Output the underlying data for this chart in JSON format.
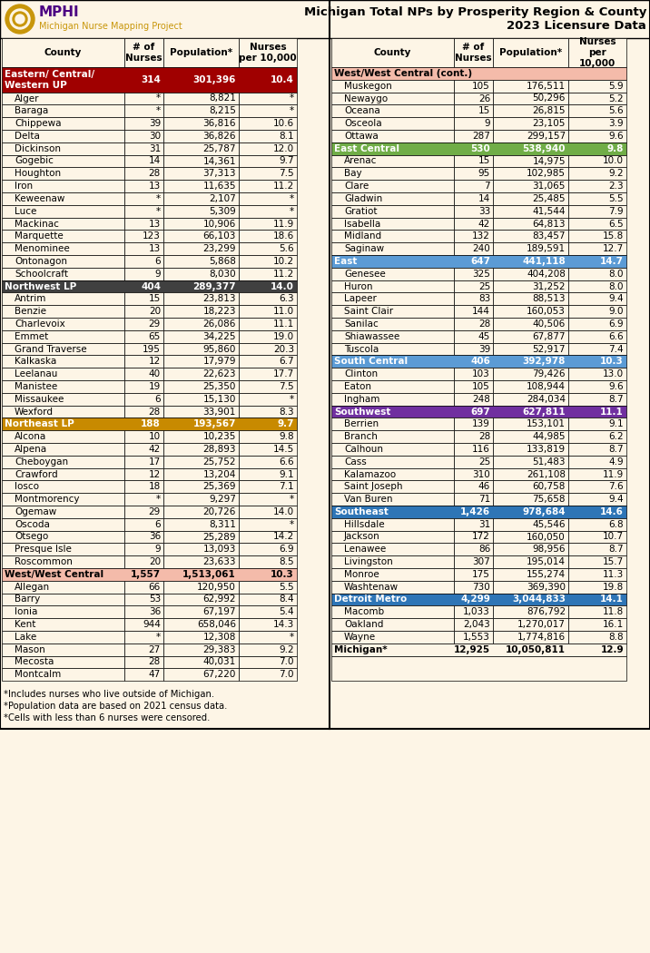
{
  "title_line1": "Michigan Total NPs by Prosperity Region & County",
  "title_line2": "2023 Licensure Data",
  "footnotes": [
    "*Includes nurses who live outside of Michigan.",
    "*Population data are based on 2021 census data.",
    "*Cells with less than 6 nurses were censored."
  ],
  "left_sections": [
    {
      "name": "Eastern/ Central/\nWestern UP",
      "nurses": "314",
      "population": "301,396",
      "per10k": "10.4",
      "color": "#A00000",
      "text_color": "#FFFFFF",
      "header_rows": 2,
      "counties": [
        [
          "Alger",
          "*",
          "8,821",
          "*"
        ],
        [
          "Baraga",
          "*",
          "8,215",
          "*"
        ],
        [
          "Chippewa",
          "39",
          "36,816",
          "10.6"
        ],
        [
          "Delta",
          "30",
          "36,826",
          "8.1"
        ],
        [
          "Dickinson",
          "31",
          "25,787",
          "12.0"
        ],
        [
          "Gogebic",
          "14",
          "14,361",
          "9.7"
        ],
        [
          "Houghton",
          "28",
          "37,313",
          "7.5"
        ],
        [
          "Iron",
          "13",
          "11,635",
          "11.2"
        ],
        [
          "Keweenaw",
          "*",
          "2,107",
          "*"
        ],
        [
          "Luce",
          "*",
          "5,309",
          "*"
        ],
        [
          "Mackinac",
          "13",
          "10,906",
          "11.9"
        ],
        [
          "Marquette",
          "123",
          "66,103",
          "18.6"
        ],
        [
          "Menominee",
          "13",
          "23,299",
          "5.6"
        ],
        [
          "Ontonagon",
          "6",
          "5,868",
          "10.2"
        ],
        [
          "Schoolcraft",
          "9",
          "8,030",
          "11.2"
        ]
      ]
    },
    {
      "name": "Northwest LP",
      "nurses": "404",
      "population": "289,377",
      "per10k": "14.0",
      "color": "#404040",
      "text_color": "#FFFFFF",
      "header_rows": 1,
      "counties": [
        [
          "Antrim",
          "15",
          "23,813",
          "6.3"
        ],
        [
          "Benzie",
          "20",
          "18,223",
          "11.0"
        ],
        [
          "Charlevoix",
          "29",
          "26,086",
          "11.1"
        ],
        [
          "Emmet",
          "65",
          "34,225",
          "19.0"
        ],
        [
          "Grand Traverse",
          "195",
          "95,860",
          "20.3"
        ],
        [
          "Kalkaska",
          "12",
          "17,979",
          "6.7"
        ],
        [
          "Leelanau",
          "40",
          "22,623",
          "17.7"
        ],
        [
          "Manistee",
          "19",
          "25,350",
          "7.5"
        ],
        [
          "Missaukee",
          "6",
          "15,130",
          "*"
        ],
        [
          "Wexford",
          "28",
          "33,901",
          "8.3"
        ]
      ]
    },
    {
      "name": "Northeast LP",
      "nurses": "188",
      "population": "193,567",
      "per10k": "9.7",
      "color": "#C88A00",
      "text_color": "#FFFFFF",
      "header_rows": 1,
      "counties": [
        [
          "Alcona",
          "10",
          "10,235",
          "9.8"
        ],
        [
          "Alpena",
          "42",
          "28,893",
          "14.5"
        ],
        [
          "Cheboygan",
          "17",
          "25,752",
          "6.6"
        ],
        [
          "Crawford",
          "12",
          "13,204",
          "9.1"
        ],
        [
          "Iosco",
          "18",
          "25,369",
          "7.1"
        ],
        [
          "Montmorency",
          "*",
          "9,297",
          "*"
        ],
        [
          "Ogemaw",
          "29",
          "20,726",
          "14.0"
        ],
        [
          "Oscoda",
          "6",
          "8,311",
          "*"
        ],
        [
          "Otsego",
          "36",
          "25,289",
          "14.2"
        ],
        [
          "Presque Isle",
          "9",
          "13,093",
          "6.9"
        ],
        [
          "Roscommon",
          "20",
          "23,633",
          "8.5"
        ]
      ]
    },
    {
      "name": "West/West Central",
      "nurses": "1,557",
      "population": "1,513,061",
      "per10k": "10.3",
      "color": "#F4BBAA",
      "text_color": "#000000",
      "header_rows": 1,
      "counties": [
        [
          "Allegan",
          "66",
          "120,950",
          "5.5"
        ],
        [
          "Barry",
          "53",
          "62,992",
          "8.4"
        ],
        [
          "Ionia",
          "36",
          "67,197",
          "5.4"
        ],
        [
          "Kent",
          "944",
          "658,046",
          "14.3"
        ],
        [
          "Lake",
          "*",
          "12,308",
          "*"
        ],
        [
          "Mason",
          "27",
          "29,383",
          "9.2"
        ],
        [
          "Mecosta",
          "28",
          "40,031",
          "7.0"
        ],
        [
          "Montcalm",
          "47",
          "67,220",
          "7.0"
        ]
      ]
    }
  ],
  "right_sections": [
    {
      "name": "West/West Central (cont.)",
      "nurses": "",
      "population": "",
      "per10k": "",
      "color": "#F4BBAA",
      "text_color": "#000000",
      "is_continuation": true,
      "header_rows": 1,
      "counties": [
        [
          "Muskegon",
          "105",
          "176,511",
          "5.9"
        ],
        [
          "Newaygo",
          "26",
          "50,296",
          "5.2"
        ],
        [
          "Oceana",
          "15",
          "26,815",
          "5.6"
        ],
        [
          "Osceola",
          "9",
          "23,105",
          "3.9"
        ],
        [
          "Ottawa",
          "287",
          "299,157",
          "9.6"
        ]
      ]
    },
    {
      "name": "East Central",
      "nurses": "530",
      "population": "538,940",
      "per10k": "9.8",
      "color": "#70AD47",
      "text_color": "#FFFFFF",
      "header_rows": 1,
      "counties": [
        [
          "Arenac",
          "15",
          "14,975",
          "10.0"
        ],
        [
          "Bay",
          "95",
          "102,985",
          "9.2"
        ],
        [
          "Clare",
          "7",
          "31,065",
          "2.3"
        ],
        [
          "Gladwin",
          "14",
          "25,485",
          "5.5"
        ],
        [
          "Gratiot",
          "33",
          "41,544",
          "7.9"
        ],
        [
          "Isabella",
          "42",
          "64,813",
          "6.5"
        ],
        [
          "Midland",
          "132",
          "83,457",
          "15.8"
        ],
        [
          "Saginaw",
          "240",
          "189,591",
          "12.7"
        ]
      ]
    },
    {
      "name": "East",
      "nurses": "647",
      "population": "441,118",
      "per10k": "14.7",
      "color": "#5B9BD5",
      "text_color": "#FFFFFF",
      "header_rows": 1,
      "counties": [
        [
          "Genesee",
          "325",
          "404,208",
          "8.0"
        ],
        [
          "Huron",
          "25",
          "31,252",
          "8.0"
        ],
        [
          "Lapeer",
          "83",
          "88,513",
          "9.4"
        ],
        [
          "Saint Clair",
          "144",
          "160,053",
          "9.0"
        ],
        [
          "Sanilac",
          "28",
          "40,506",
          "6.9"
        ],
        [
          "Shiawassee",
          "45",
          "67,877",
          "6.6"
        ],
        [
          "Tuscola",
          "39",
          "52,917",
          "7.4"
        ]
      ]
    },
    {
      "name": "South Central",
      "nurses": "406",
      "population": "392,978",
      "per10k": "10.3",
      "color": "#5B9BD5",
      "text_color": "#FFFFFF",
      "header_rows": 1,
      "counties": [
        [
          "Clinton",
          "103",
          "79,426",
          "13.0"
        ],
        [
          "Eaton",
          "105",
          "108,944",
          "9.6"
        ],
        [
          "Ingham",
          "248",
          "284,034",
          "8.7"
        ]
      ]
    },
    {
      "name": "Southwest",
      "nurses": "697",
      "population": "627,811",
      "per10k": "11.1",
      "color": "#7030A0",
      "text_color": "#FFFFFF",
      "header_rows": 1,
      "counties": [
        [
          "Berrien",
          "139",
          "153,101",
          "9.1"
        ],
        [
          "Branch",
          "28",
          "44,985",
          "6.2"
        ],
        [
          "Calhoun",
          "116",
          "133,819",
          "8.7"
        ],
        [
          "Cass",
          "25",
          "51,483",
          "4.9"
        ],
        [
          "Kalamazoo",
          "310",
          "261,108",
          "11.9"
        ],
        [
          "Saint Joseph",
          "46",
          "60,758",
          "7.6"
        ],
        [
          "Van Buren",
          "71",
          "75,658",
          "9.4"
        ]
      ]
    },
    {
      "name": "Southeast",
      "nurses": "1,426",
      "population": "978,684",
      "per10k": "14.6",
      "color": "#2E75B6",
      "text_color": "#FFFFFF",
      "header_rows": 1,
      "counties": [
        [
          "Hillsdale",
          "31",
          "45,546",
          "6.8"
        ],
        [
          "Jackson",
          "172",
          "160,050",
          "10.7"
        ],
        [
          "Lenawee",
          "86",
          "98,956",
          "8.7"
        ],
        [
          "Livingston",
          "307",
          "195,014",
          "15.7"
        ],
        [
          "Monroe",
          "175",
          "155,274",
          "11.3"
        ],
        [
          "Washtenaw",
          "730",
          "369,390",
          "19.8"
        ]
      ]
    },
    {
      "name": "Detroit Metro",
      "nurses": "4,299",
      "population": "3,044,833",
      "per10k": "14.1",
      "color": "#2E75B6",
      "text_color": "#FFFFFF",
      "header_rows": 1,
      "counties": [
        [
          "Macomb",
          "1,033",
          "876,792",
          "11.8"
        ],
        [
          "Oakland",
          "2,043",
          "1,270,017",
          "16.1"
        ],
        [
          "Wayne",
          "1,553",
          "1,774,816",
          "8.8"
        ]
      ]
    }
  ],
  "michigan_row": [
    "Michigan*",
    "12,925",
    "10,050,811",
    "12.9"
  ],
  "bg_color": "#FDF5E6",
  "border_color": "#000000"
}
